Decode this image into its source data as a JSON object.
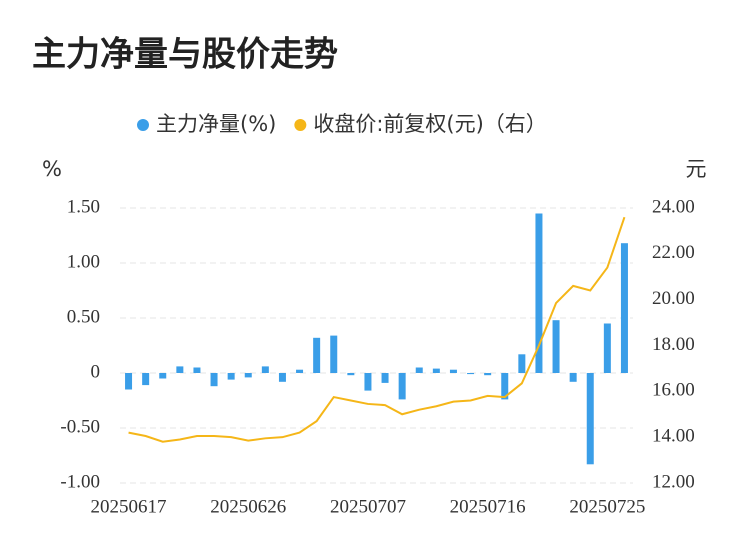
{
  "chart_data": {
    "type": "bar-line",
    "title": "主力净量与股价走势",
    "categories": [
      "20250617",
      null,
      null,
      null,
      null,
      null,
      null,
      "20250626",
      null,
      null,
      null,
      null,
      null,
      null,
      "20250707",
      null,
      null,
      null,
      null,
      null,
      null,
      "20250716",
      null,
      null,
      null,
      null,
      null,
      null,
      "20250725",
      null
    ],
    "series": [
      {
        "name": "主力净量(%)",
        "type": "bar",
        "color": "#3a9ee8",
        "values": [
          -0.15,
          -0.11,
          -0.05,
          0.06,
          0.05,
          -0.12,
          -0.06,
          -0.04,
          0.06,
          -0.08,
          0.03,
          0.32,
          0.34,
          -0.02,
          -0.16,
          -0.09,
          -0.24,
          0.05,
          0.04,
          0.03,
          -0.01,
          -0.02,
          -0.24,
          0.17,
          1.45,
          0.48,
          -0.08,
          -0.83,
          0.45,
          1.18
        ]
      },
      {
        "name": "收盘价:前复权(元)（右）",
        "type": "line",
        "axis": "y2",
        "color": "#f5b618",
        "values": [
          14.2,
          14.05,
          13.8,
          13.9,
          14.05,
          14.05,
          14.0,
          13.85,
          13.95,
          14.0,
          14.2,
          14.7,
          15.75,
          15.6,
          15.45,
          15.4,
          15.0,
          15.2,
          15.35,
          15.55,
          15.6,
          15.8,
          15.75,
          16.35,
          18.0,
          19.85,
          20.6,
          20.4,
          21.4,
          23.6
        ]
      }
    ],
    "ylabel": "%",
    "y2label": "元",
    "ylim": [
      -1,
      1.5
    ],
    "yticks": [
      {
        "value": -1,
        "label": "-1.00"
      },
      {
        "value": -0.5,
        "label": "-0.50"
      },
      0,
      {
        "value": 0.5,
        "label": "0.50"
      },
      {
        "value": 1,
        "label": "1.00"
      },
      {
        "value": 1.5,
        "label": "1.50"
      }
    ],
    "y2lim": [
      12,
      24
    ],
    "y2ticks": [
      {
        "value": 12,
        "label": "12.00"
      },
      {
        "value": 14,
        "label": "14.00"
      },
      {
        "value": 16,
        "label": "16.00"
      },
      {
        "value": 18,
        "label": "18.00"
      },
      {
        "value": 20,
        "label": "20.00"
      },
      {
        "value": 22,
        "label": "22.00"
      },
      {
        "value": 24,
        "label": "24.00"
      }
    ],
    "grid": true,
    "legend": "top"
  }
}
